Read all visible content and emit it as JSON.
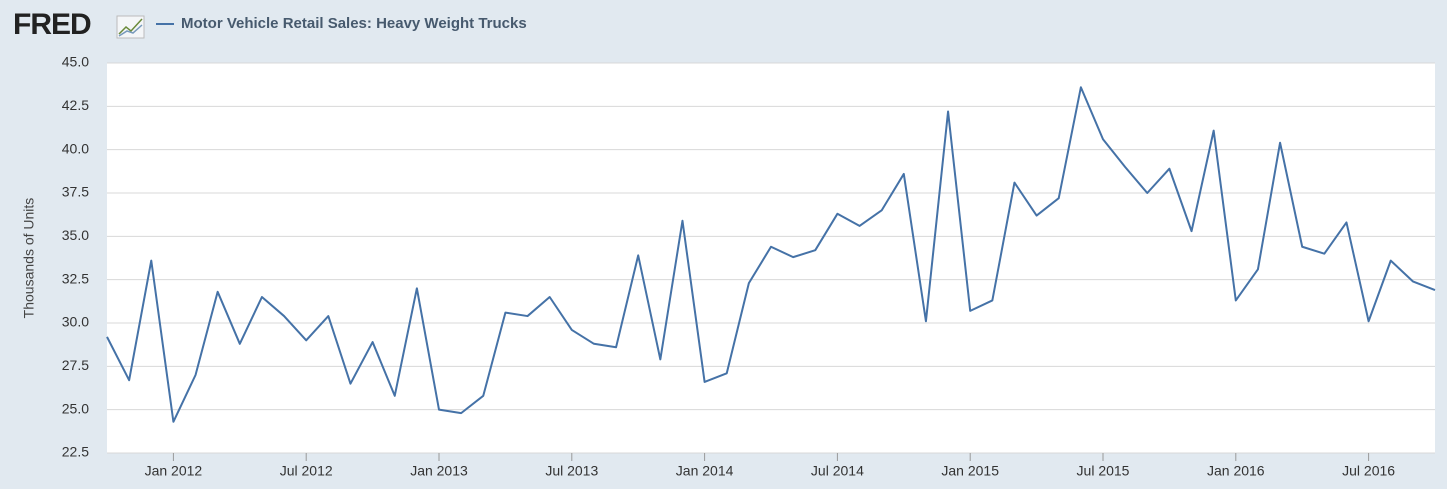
{
  "logo": "FRED",
  "chart_data": {
    "type": "line",
    "title": "Motor Vehicle Retail Sales: Heavy Weight Trucks",
    "y_label": "Thousands of Units",
    "x": [
      "2011-10",
      "2011-11",
      "2011-12",
      "2012-01",
      "2012-02",
      "2012-03",
      "2012-04",
      "2012-05",
      "2012-06",
      "2012-07",
      "2012-08",
      "2012-09",
      "2012-10",
      "2012-11",
      "2012-12",
      "2013-01",
      "2013-02",
      "2013-03",
      "2013-04",
      "2013-05",
      "2013-06",
      "2013-07",
      "2013-08",
      "2013-09",
      "2013-10",
      "2013-11",
      "2013-12",
      "2014-01",
      "2014-02",
      "2014-03",
      "2014-04",
      "2014-05",
      "2014-06",
      "2014-07",
      "2014-08",
      "2014-09",
      "2014-10",
      "2014-11",
      "2014-12",
      "2015-01",
      "2015-02",
      "2015-03",
      "2015-04",
      "2015-05",
      "2015-06",
      "2015-07",
      "2015-08",
      "2015-09",
      "2015-10",
      "2015-11",
      "2015-12",
      "2016-01",
      "2016-02",
      "2016-03",
      "2016-04",
      "2016-05",
      "2016-06",
      "2016-07",
      "2016-08",
      "2016-09",
      "2016-10"
    ],
    "series": [
      {
        "name": "Motor Vehicle Retail Sales: Heavy Weight Trucks",
        "color": "#4572a7",
        "values": [
          29.2,
          26.7,
          33.6,
          24.3,
          27.0,
          31.8,
          28.8,
          31.5,
          30.4,
          29.0,
          30.4,
          26.5,
          28.9,
          25.8,
          32.0,
          25.0,
          24.8,
          25.8,
          30.6,
          30.4,
          31.5,
          29.6,
          28.8,
          28.6,
          33.9,
          27.9,
          35.9,
          26.6,
          27.1,
          32.3,
          34.4,
          33.8,
          34.2,
          36.3,
          35.6,
          36.5,
          38.6,
          30.1,
          42.2,
          30.7,
          31.3,
          38.1,
          36.2,
          37.2,
          43.6,
          40.6,
          39.0,
          37.5,
          38.9,
          35.3,
          41.1,
          31.3,
          33.1,
          40.4,
          34.4,
          34.0,
          35.8,
          30.1,
          33.6,
          32.4,
          31.9
        ]
      }
    ],
    "xticks": [
      {
        "value": "2012-01",
        "label": "Jan 2012"
      },
      {
        "value": "2012-07",
        "label": "Jul 2012"
      },
      {
        "value": "2013-01",
        "label": "Jan 2013"
      },
      {
        "value": "2013-07",
        "label": "Jul 2013"
      },
      {
        "value": "2014-01",
        "label": "Jan 2014"
      },
      {
        "value": "2014-07",
        "label": "Jul 2014"
      },
      {
        "value": "2015-01",
        "label": "Jan 2015"
      },
      {
        "value": "2015-07",
        "label": "Jul 2015"
      },
      {
        "value": "2016-01",
        "label": "Jan 2016"
      },
      {
        "value": "2016-07",
        "label": "Jul 2016"
      }
    ],
    "ylim": [
      22.5,
      45
    ],
    "yticks": [
      {
        "value": 22.5,
        "label": "22.5"
      },
      {
        "value": 25,
        "label": "25.0"
      },
      {
        "value": 27.5,
        "label": "27.5"
      },
      {
        "value": 30,
        "label": "30.0"
      },
      {
        "value": 32.5,
        "label": "32.5"
      },
      {
        "value": 35,
        "label": "35.0"
      },
      {
        "value": 37.5,
        "label": "37.5"
      },
      {
        "value": 40,
        "label": "40.0"
      },
      {
        "value": 42.5,
        "label": "42.5"
      },
      {
        "value": 45,
        "label": "45.0"
      }
    ],
    "grid": true
  }
}
